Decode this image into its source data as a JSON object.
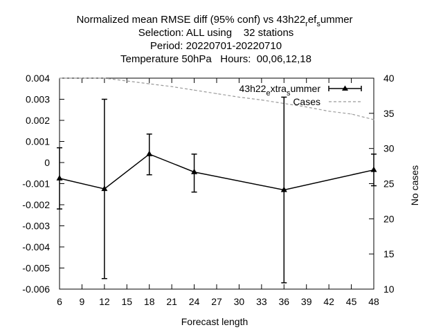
{
  "chart_data": {
    "type": "line",
    "title_lines": [
      "Normalized mean RMSE diff (95% conf) vs 43h22_ref_summer",
      "Selection: ALL using    32 stations",
      "Period: 20220701-20220710",
      "Temperature 50hPa   Hours:  00,06,12,18"
    ],
    "xlabel": "Forecast length",
    "ylabel_left": "",
    "ylabel_right": "No cases",
    "xlim": [
      6,
      48
    ],
    "ylim_left": [
      -0.006,
      0.004
    ],
    "ylim_right": [
      10,
      40
    ],
    "x_ticks": [
      6,
      9,
      12,
      15,
      18,
      21,
      24,
      27,
      30,
      33,
      36,
      39,
      42,
      45,
      48
    ],
    "y_left_ticks": [
      0.004,
      0.003,
      0.002,
      0.001,
      0,
      -0.001,
      -0.002,
      -0.003,
      -0.004,
      -0.005,
      -0.006
    ],
    "y_left_tick_labels": [
      "0.004",
      "0.003",
      "0.002",
      "0.001",
      "0",
      "-0.001",
      "-0.002",
      "-0.003",
      "-0.004",
      "-0.005",
      "-0.006"
    ],
    "y_right_ticks": [
      40,
      35,
      30,
      25,
      20,
      15,
      10
    ],
    "grid": false,
    "legend_position": "top-right",
    "series": [
      {
        "name": "43h22_extra_summer",
        "axis": "left",
        "color": "#000000",
        "marker": "triangle",
        "x": [
          6,
          12,
          18,
          24,
          36,
          48
        ],
        "y": [
          -0.00075,
          -0.00125,
          0.0004,
          -0.00045,
          -0.0013,
          -0.00035
        ],
        "err_low": [
          -0.0022,
          -0.0055,
          -0.00058,
          -0.0014,
          -0.0057,
          -0.0011
        ],
        "err_high": [
          0.0007,
          0.003,
          0.00135,
          0.0004,
          0.0031,
          0.0004
        ]
      },
      {
        "name": "Cases",
        "axis": "right",
        "color": "#999999",
        "style": "dashed",
        "x": [
          6,
          9,
          12,
          15,
          18,
          21,
          24,
          27,
          30,
          33,
          36,
          39,
          42,
          45,
          48
        ],
        "y": [
          40,
          40,
          40,
          39.6,
          39.2,
          38.8,
          38.3,
          37.8,
          37.3,
          36.9,
          36.4,
          35.9,
          35.3,
          34.9,
          34.1
        ]
      }
    ],
    "legend_labels": {
      "main_prefix": "43h22",
      "main_sub1": "e",
      "main_mid": "xtra",
      "main_sub2": "s",
      "main_end": "ummer",
      "cases": "Cases"
    }
  }
}
